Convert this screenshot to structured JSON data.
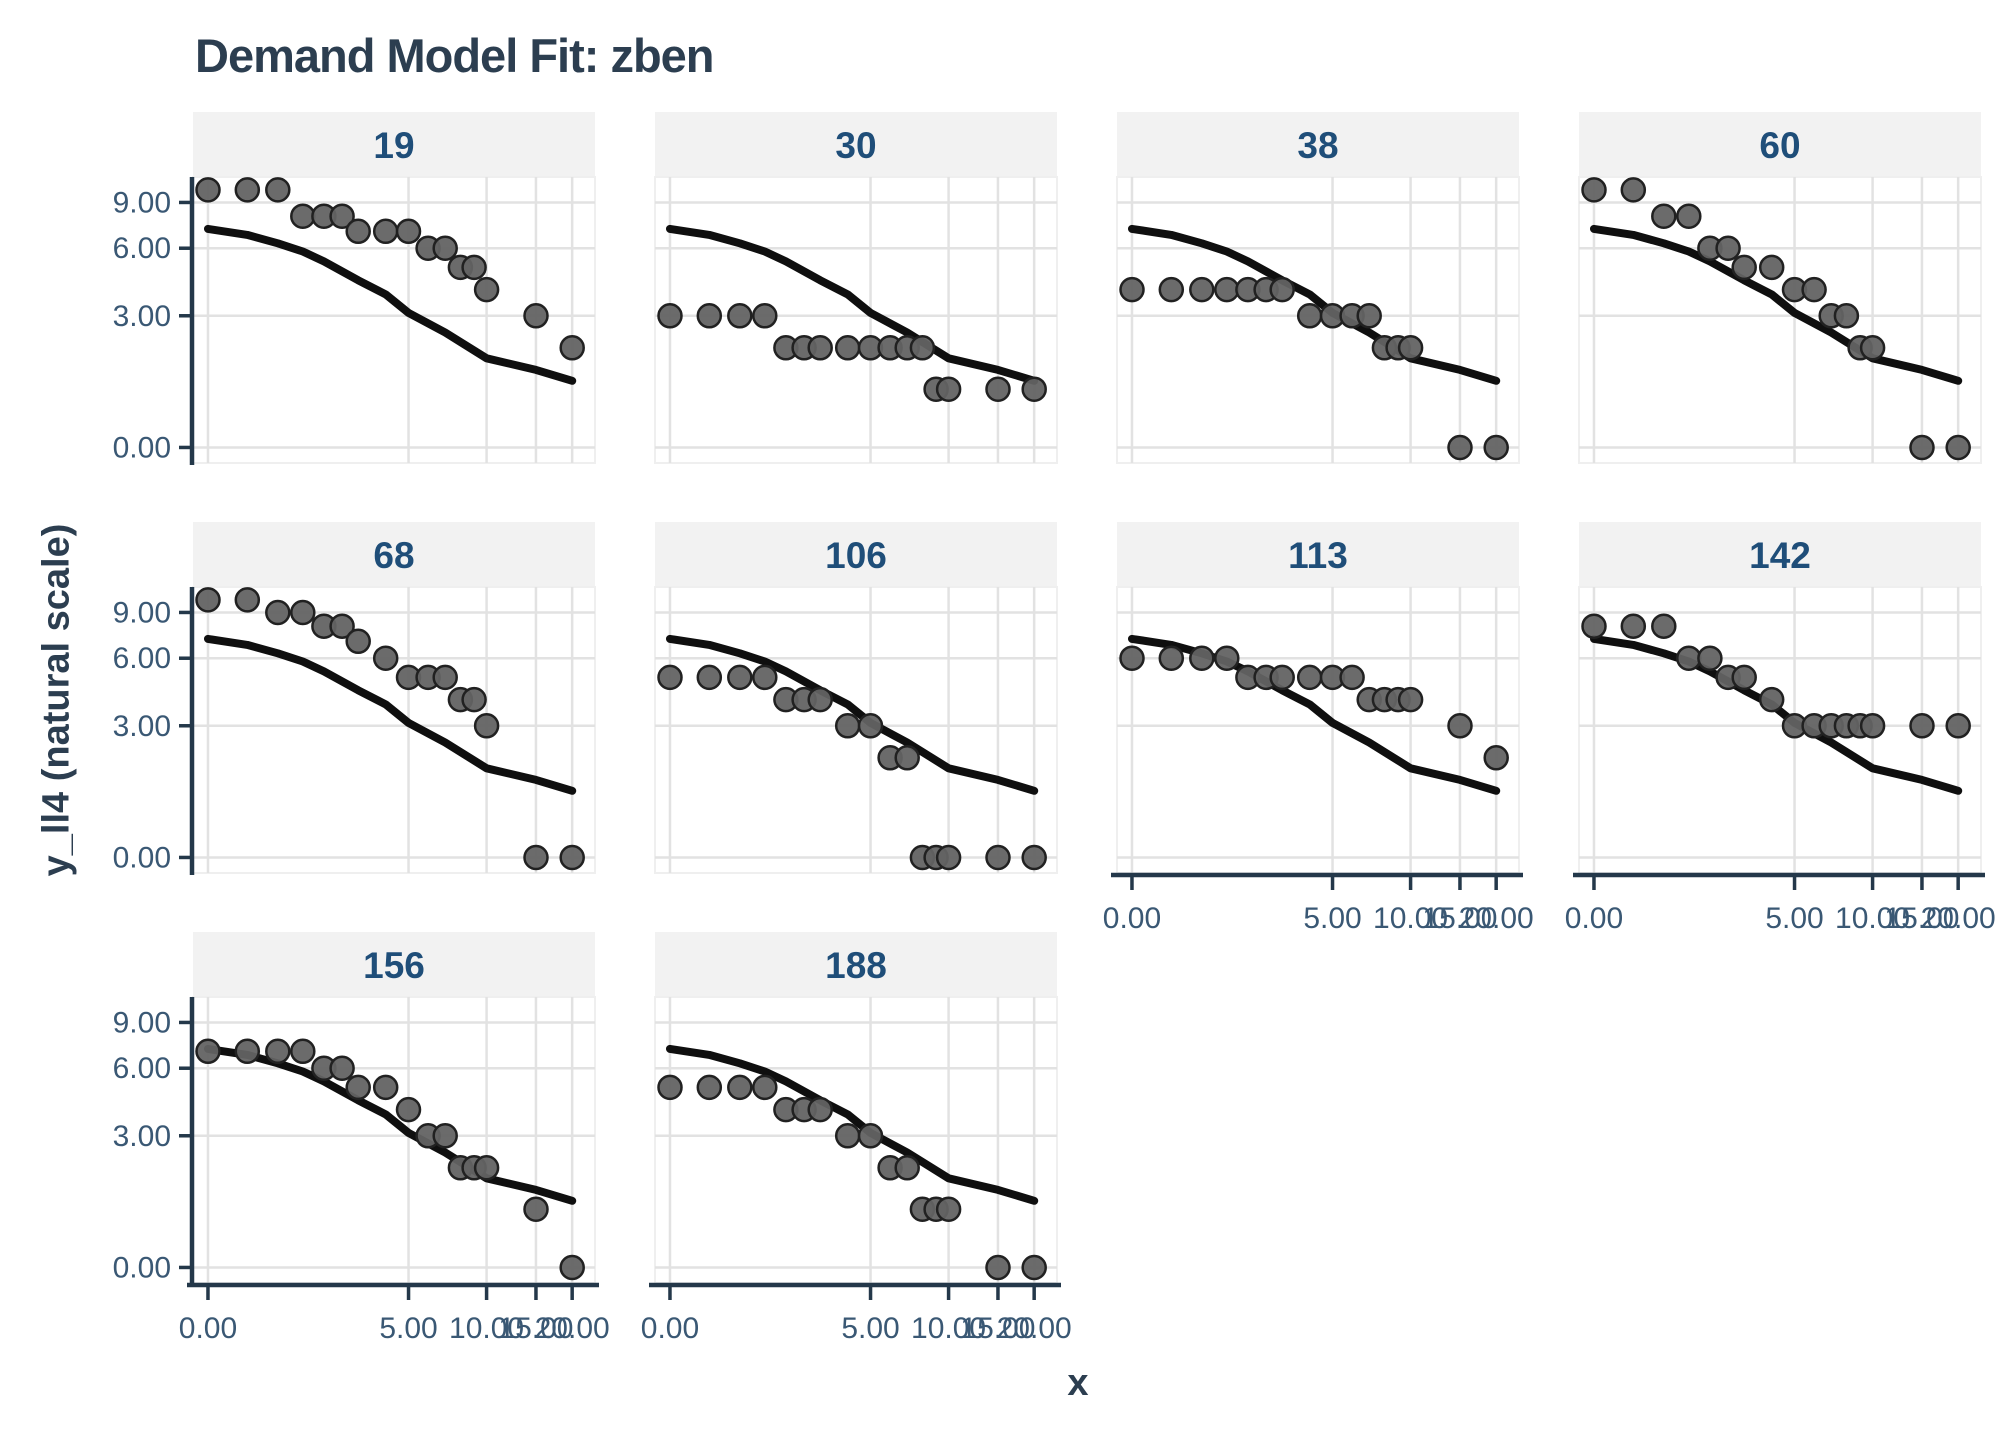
{
  "header": {
    "title": "Demand Model Fit: zben"
  },
  "chart_data": {
    "type": "scatter",
    "title": "Demand Model Fit: zben",
    "xlabel": "x",
    "ylabel": "y_ll4 (natural scale)",
    "legend_position": "none",
    "grid": true,
    "facet_grid": {
      "ncols": 4,
      "nrows": 3,
      "n_facets": 10
    },
    "x_scale": {
      "transform": "log(x+1.5)",
      "data_range": [
        0,
        20
      ]
    },
    "y_scale": {
      "transform": "log(y+2)",
      "data_range": [
        0,
        10
      ]
    },
    "x_ticks": {
      "values": [
        0,
        5,
        10,
        15,
        20
      ],
      "labels": [
        "0.00",
        "5.00",
        "10.00",
        "15.00",
        "20.00"
      ]
    },
    "y_ticks": {
      "values": [
        0,
        3,
        6,
        9
      ],
      "labels": [
        "0.00",
        "3.00",
        "6.00",
        "9.00"
      ]
    },
    "x_values": [
      0,
      0.5,
      1,
      1.5,
      2,
      2.5,
      3,
      4,
      5,
      6,
      7,
      8,
      9,
      10,
      15,
      20
    ],
    "facets": [
      {
        "label": "19",
        "y_values": [
          10,
          10,
          10,
          8,
          8,
          8,
          7,
          7,
          7,
          6,
          6,
          5,
          5,
          4,
          3,
          2
        ]
      },
      {
        "label": "30",
        "y_values": [
          3,
          3,
          3,
          3,
          2,
          2,
          2,
          2,
          2,
          2,
          2,
          2,
          1,
          1,
          1,
          1
        ]
      },
      {
        "label": "38",
        "y_values": [
          4,
          4,
          4,
          4,
          4,
          4,
          4,
          3,
          3,
          3,
          3,
          2,
          2,
          2,
          0,
          0
        ]
      },
      {
        "label": "60",
        "y_values": [
          10,
          10,
          8,
          8,
          6,
          6,
          5,
          5,
          4,
          4,
          3,
          3,
          2,
          2,
          0,
          0
        ]
      },
      {
        "label": "68",
        "y_values": [
          10,
          10,
          9,
          9,
          8,
          8,
          7,
          6,
          5,
          5,
          5,
          4,
          4,
          3,
          0,
          0
        ]
      },
      {
        "label": "106",
        "y_values": [
          5,
          5,
          5,
          5,
          4,
          4,
          4,
          3,
          3,
          2,
          2,
          0,
          0,
          0,
          0,
          0
        ]
      },
      {
        "label": "113",
        "y_values": [
          6,
          6,
          6,
          6,
          5,
          5,
          5,
          5,
          5,
          5,
          4,
          4,
          4,
          4,
          3,
          2
        ]
      },
      {
        "label": "142",
        "y_values": [
          8,
          8,
          8,
          6,
          6,
          5,
          5,
          4,
          3,
          3,
          3,
          3,
          3,
          3,
          3,
          3
        ]
      },
      {
        "label": "156",
        "y_values": [
          7,
          7,
          7,
          7,
          6,
          6,
          5,
          5,
          4,
          3,
          3,
          2,
          2,
          2,
          1,
          0
        ]
      },
      {
        "label": "188",
        "y_values": [
          5,
          5,
          5,
          5,
          4,
          4,
          4,
          3,
          3,
          2,
          2,
          1,
          1,
          1,
          0,
          0
        ]
      }
    ],
    "fit_curve": {
      "shared_across_facets": true,
      "x": [
        0,
        0.5,
        1,
        1.5,
        2,
        3,
        4,
        5,
        7,
        10,
        15,
        20
      ],
      "y": [
        7.15,
        6.78,
        6.28,
        5.82,
        5.3,
        4.4,
        3.8,
        3.1,
        2.45,
        1.72,
        1.43,
        1.18
      ]
    },
    "panels_with_x_axis": [
      "113",
      "142",
      "156",
      "188"
    ],
    "panels_with_y_axis": [
      "19",
      "68",
      "156"
    ],
    "colors": {
      "title_text": "#2C3E50",
      "strip_text": "#1F4E79",
      "strip_bg": "#F2F2F2",
      "axis_text": "#3A5874",
      "axis_line": "#24384A",
      "grid_line": "#E2E2E2",
      "panel_border": "#EFEFEF",
      "point_fill": "#636363",
      "point_stroke": "#212121",
      "curve": "#0F0F0F",
      "background": "#FFFFFF"
    }
  }
}
